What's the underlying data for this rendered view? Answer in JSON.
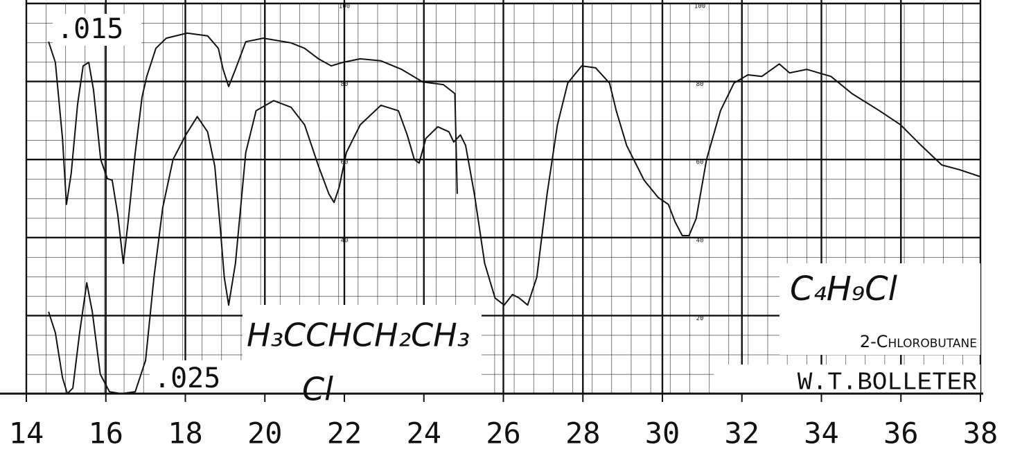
{
  "chart_data": {
    "type": "line",
    "formula": "C₄H₉Cl",
    "title": "2-Chlorobutane",
    "author": "W.T.BOLLETER",
    "structure": {
      "line1": "H₃CCHCH₂CH₃",
      "line2": "Cl"
    },
    "xlim": [
      14,
      38
    ],
    "xticks": [
      14,
      16,
      18,
      20,
      22,
      24,
      26,
      28,
      30,
      32,
      34,
      36,
      38
    ],
    "ylim": [
      0,
      100
    ],
    "yticks": [
      20,
      40,
      60,
      80,
      100
    ],
    "grid": true,
    "series": [
      {
        "name": ".015",
        "color": "#111111",
        "x": [
          14.56,
          14.73,
          14.91,
          15.01,
          15.13,
          15.29,
          15.43,
          15.57,
          15.69,
          15.87,
          16.04,
          16.16,
          16.3,
          16.44,
          16.56,
          16.74,
          16.91,
          17.03,
          17.26,
          17.52,
          18.04,
          18.56,
          18.83,
          18.95,
          19.09,
          19.26,
          19.52,
          19.96,
          20.66,
          21.0,
          21.35,
          21.67,
          21.96,
          22.4,
          22.92,
          23.44,
          23.97,
          24.49,
          24.78,
          24.84
        ],
        "values": [
          90.2,
          84.9,
          65.4,
          48.5,
          56.5,
          74.2,
          84.0,
          84.9,
          77.8,
          60.0,
          55.1,
          54.7,
          45.8,
          33.4,
          44.0,
          61.8,
          76.0,
          81.3,
          88.5,
          91.1,
          92.4,
          91.7,
          88.5,
          83.1,
          78.7,
          83.1,
          90.2,
          91.1,
          89.9,
          88.5,
          85.8,
          84.0,
          84.9,
          85.8,
          85.3,
          83.1,
          79.9,
          79.2,
          76.9,
          51.2
        ]
      },
      {
        "name": ".025",
        "color": "#111111",
        "x": [
          14.56,
          14.73,
          14.91,
          15.03,
          15.17,
          15.34,
          15.52,
          15.66,
          15.86,
          16.09,
          16.39,
          16.74,
          17.0,
          17.21,
          17.43,
          17.69,
          18.01,
          18.3,
          18.56,
          18.74,
          18.88,
          18.98,
          19.09,
          19.26,
          19.52,
          19.78,
          20.22,
          20.66,
          21.0,
          21.35,
          21.61,
          21.74,
          21.87,
          22.05,
          22.4,
          22.92,
          23.36,
          23.58,
          23.76,
          23.88,
          24.05,
          24.35,
          24.63,
          24.75,
          24.92,
          25.05,
          25.27,
          25.53,
          25.79,
          26.02,
          26.23,
          26.4,
          26.61,
          26.84,
          27.1,
          27.36,
          27.62,
          27.97,
          28.32,
          28.67,
          28.84,
          29.1,
          29.54,
          29.89,
          30.15,
          30.32,
          30.5,
          30.67,
          30.85,
          31.11,
          31.46,
          31.8,
          32.15,
          32.5,
          32.94,
          33.2,
          33.63,
          34.24,
          34.77,
          35.46,
          35.99,
          36.51,
          37.03,
          37.47,
          38.0
        ],
        "values": [
          21.0,
          15.6,
          4.1,
          0,
          1.4,
          15.6,
          28.4,
          21.0,
          5.0,
          0.5,
          0,
          0.5,
          8.5,
          29.8,
          47.6,
          60.0,
          66.3,
          71.0,
          67.1,
          58.3,
          42.3,
          29.8,
          22.7,
          33.4,
          61.8,
          72.5,
          75.1,
          73.4,
          68.9,
          58.3,
          51.2,
          49.0,
          52.9,
          61.8,
          68.9,
          73.9,
          72.5,
          66.3,
          60.0,
          59.1,
          65.4,
          68.4,
          67.1,
          64.5,
          66.3,
          63.6,
          51.2,
          33.4,
          24.5,
          22.7,
          25.4,
          24.5,
          22.7,
          29.8,
          51.2,
          68.9,
          79.6,
          84.0,
          83.5,
          79.6,
          72.5,
          63.6,
          54.7,
          50.3,
          48.5,
          44.0,
          40.5,
          40.5,
          44.9,
          60.0,
          72.5,
          79.6,
          81.7,
          81.3,
          84.5,
          82.2,
          83.1,
          81.3,
          76.9,
          72.5,
          68.9,
          63.6,
          58.6,
          57.4,
          55.6
        ]
      }
    ]
  }
}
